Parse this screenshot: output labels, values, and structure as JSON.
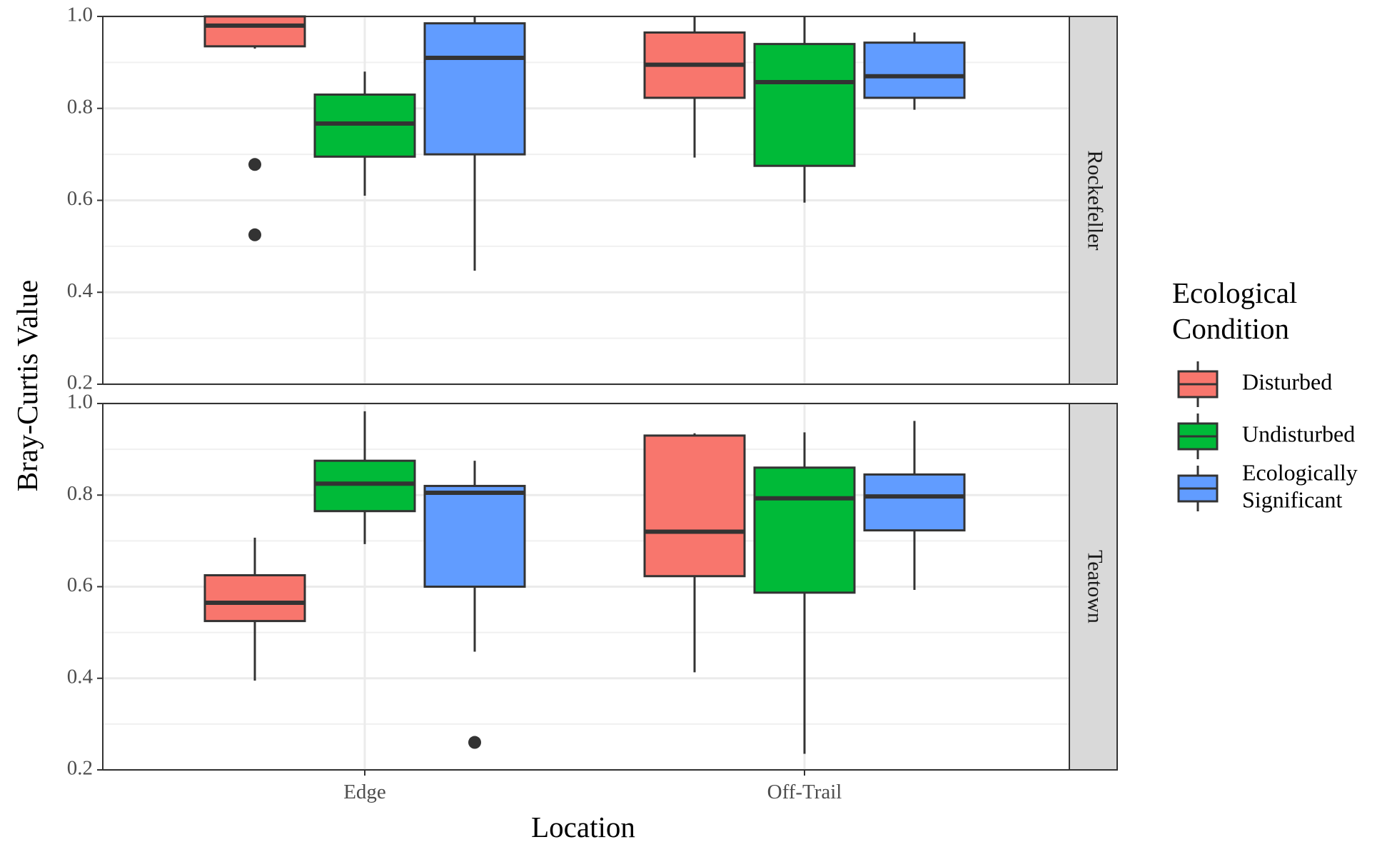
{
  "chart_data": {
    "type": "boxplot",
    "xlabel": "Location",
    "ylabel": "Bray-Curtis Value",
    "categories": [
      "Edge",
      "Off-Trail"
    ],
    "ylim": [
      0.2,
      1.0
    ],
    "yticks": [
      0.2,
      0.4,
      0.6,
      0.8,
      1.0
    ],
    "ytick_labels": [
      "0.2",
      "0.4",
      "0.6",
      "0.8",
      "1.0"
    ],
    "grid": true,
    "legend": {
      "title_lines": [
        "Ecological",
        "Condition"
      ],
      "placement": "right",
      "entries": [
        {
          "name": "Disturbed",
          "label_lines": [
            "Disturbed"
          ],
          "color": "#F8766D"
        },
        {
          "name": "Undisturbed",
          "label_lines": [
            "Undisturbed"
          ],
          "color": "#00BA38"
        },
        {
          "name": "Ecologically Significant",
          "label_lines": [
            "Ecologically",
            "Significant"
          ],
          "color": "#619CFF"
        }
      ]
    },
    "facets": [
      {
        "label": "Rockefeller",
        "groups": [
          {
            "location": "Edge",
            "condition": "Disturbed",
            "whisker_low": 0.93,
            "q1": 0.935,
            "median": 0.98,
            "q3": 1.0,
            "whisker_high": 1.0,
            "outliers": [
              0.678,
              0.525
            ]
          },
          {
            "location": "Edge",
            "condition": "Undisturbed",
            "whisker_low": 0.61,
            "q1": 0.695,
            "median": 0.767,
            "q3": 0.83,
            "whisker_high": 0.88,
            "outliers": []
          },
          {
            "location": "Edge",
            "condition": "Ecologically Significant",
            "whisker_low": 0.447,
            "q1": 0.7,
            "median": 0.91,
            "q3": 0.985,
            "whisker_high": 1.0,
            "outliers": []
          },
          {
            "location": "Off-Trail",
            "condition": "Disturbed",
            "whisker_low": 0.693,
            "q1": 0.823,
            "median": 0.895,
            "q3": 0.965,
            "whisker_high": 1.0,
            "outliers": []
          },
          {
            "location": "Off-Trail",
            "condition": "Undisturbed",
            "whisker_low": 0.595,
            "q1": 0.675,
            "median": 0.857,
            "q3": 0.94,
            "whisker_high": 1.0,
            "outliers": []
          },
          {
            "location": "Off-Trail",
            "condition": "Ecologically Significant",
            "whisker_low": 0.797,
            "q1": 0.823,
            "median": 0.87,
            "q3": 0.943,
            "whisker_high": 0.965,
            "outliers": []
          }
        ]
      },
      {
        "label": "Teatown",
        "groups": [
          {
            "location": "Edge",
            "condition": "Disturbed",
            "whisker_low": 0.395,
            "q1": 0.525,
            "median": 0.565,
            "q3": 0.625,
            "whisker_high": 0.707,
            "outliers": []
          },
          {
            "location": "Edge",
            "condition": "Undisturbed",
            "whisker_low": 0.693,
            "q1": 0.765,
            "median": 0.825,
            "q3": 0.875,
            "whisker_high": 0.983,
            "outliers": []
          },
          {
            "location": "Edge",
            "condition": "Ecologically Significant",
            "whisker_low": 0.458,
            "q1": 0.6,
            "median": 0.805,
            "q3": 0.82,
            "whisker_high": 0.875,
            "outliers": [
              0.26
            ]
          },
          {
            "location": "Off-Trail",
            "condition": "Disturbed",
            "whisker_low": 0.413,
            "q1": 0.623,
            "median": 0.72,
            "q3": 0.93,
            "whisker_high": 0.935,
            "outliers": []
          },
          {
            "location": "Off-Trail",
            "condition": "Undisturbed",
            "whisker_low": 0.235,
            "q1": 0.587,
            "median": 0.793,
            "q3": 0.86,
            "whisker_high": 0.937,
            "outliers": []
          },
          {
            "location": "Off-Trail",
            "condition": "Ecologically Significant",
            "whisker_low": 0.593,
            "q1": 0.723,
            "median": 0.797,
            "q3": 0.845,
            "whisker_high": 0.962,
            "outliers": []
          }
        ]
      }
    ]
  }
}
